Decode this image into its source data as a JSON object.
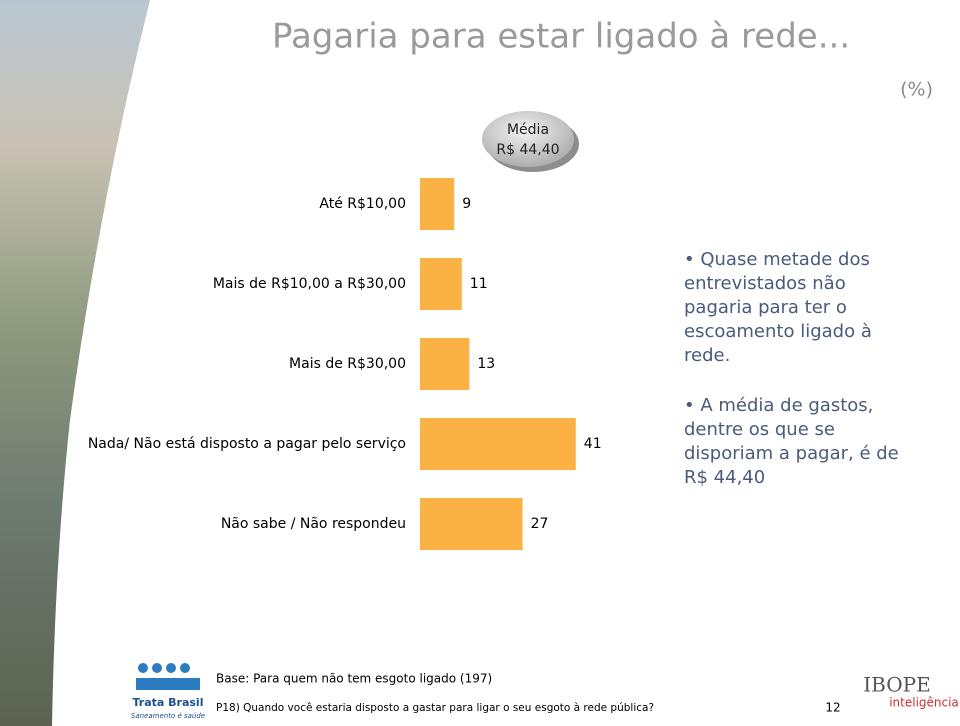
{
  "chart_data": {
    "type": "bar",
    "orientation": "horizontal",
    "title": "Pagaria para estar ligado à rede...",
    "unit_label": "(%)",
    "badge": {
      "label": "Média",
      "value": "R$ 44,40"
    },
    "categories": [
      "Até R$10,00",
      "Mais de R$10,00 a R$30,00",
      "Mais de R$30,00",
      "Nada/ Não está disposto a pagar pelo serviço",
      "Não sabe / Não respondeu"
    ],
    "values": [
      9,
      11,
      13,
      41,
      27
    ],
    "color": "#fbb244"
  },
  "bullets": [
    [
      "• Quase metade dos",
      "entrevistados não",
      "pagaria para ter o",
      "escoamento ligado à",
      "rede."
    ],
    [
      "• A média de gastos,",
      "dentre os que se",
      "disporiam a pagar, é de",
      "R$ 44,40"
    ]
  ],
  "footer": {
    "base": "Base: Para quem não tem esgoto ligado (197)",
    "question": "P18) Quando você estaria disposto a gastar para ligar o seu esgoto à rede pública?",
    "page": "12"
  },
  "logos": {
    "left": "Trata Brasil",
    "left_tagline": "Saneamento é saúde",
    "right": "IBOPE",
    "right_tagline": "inteligência"
  }
}
